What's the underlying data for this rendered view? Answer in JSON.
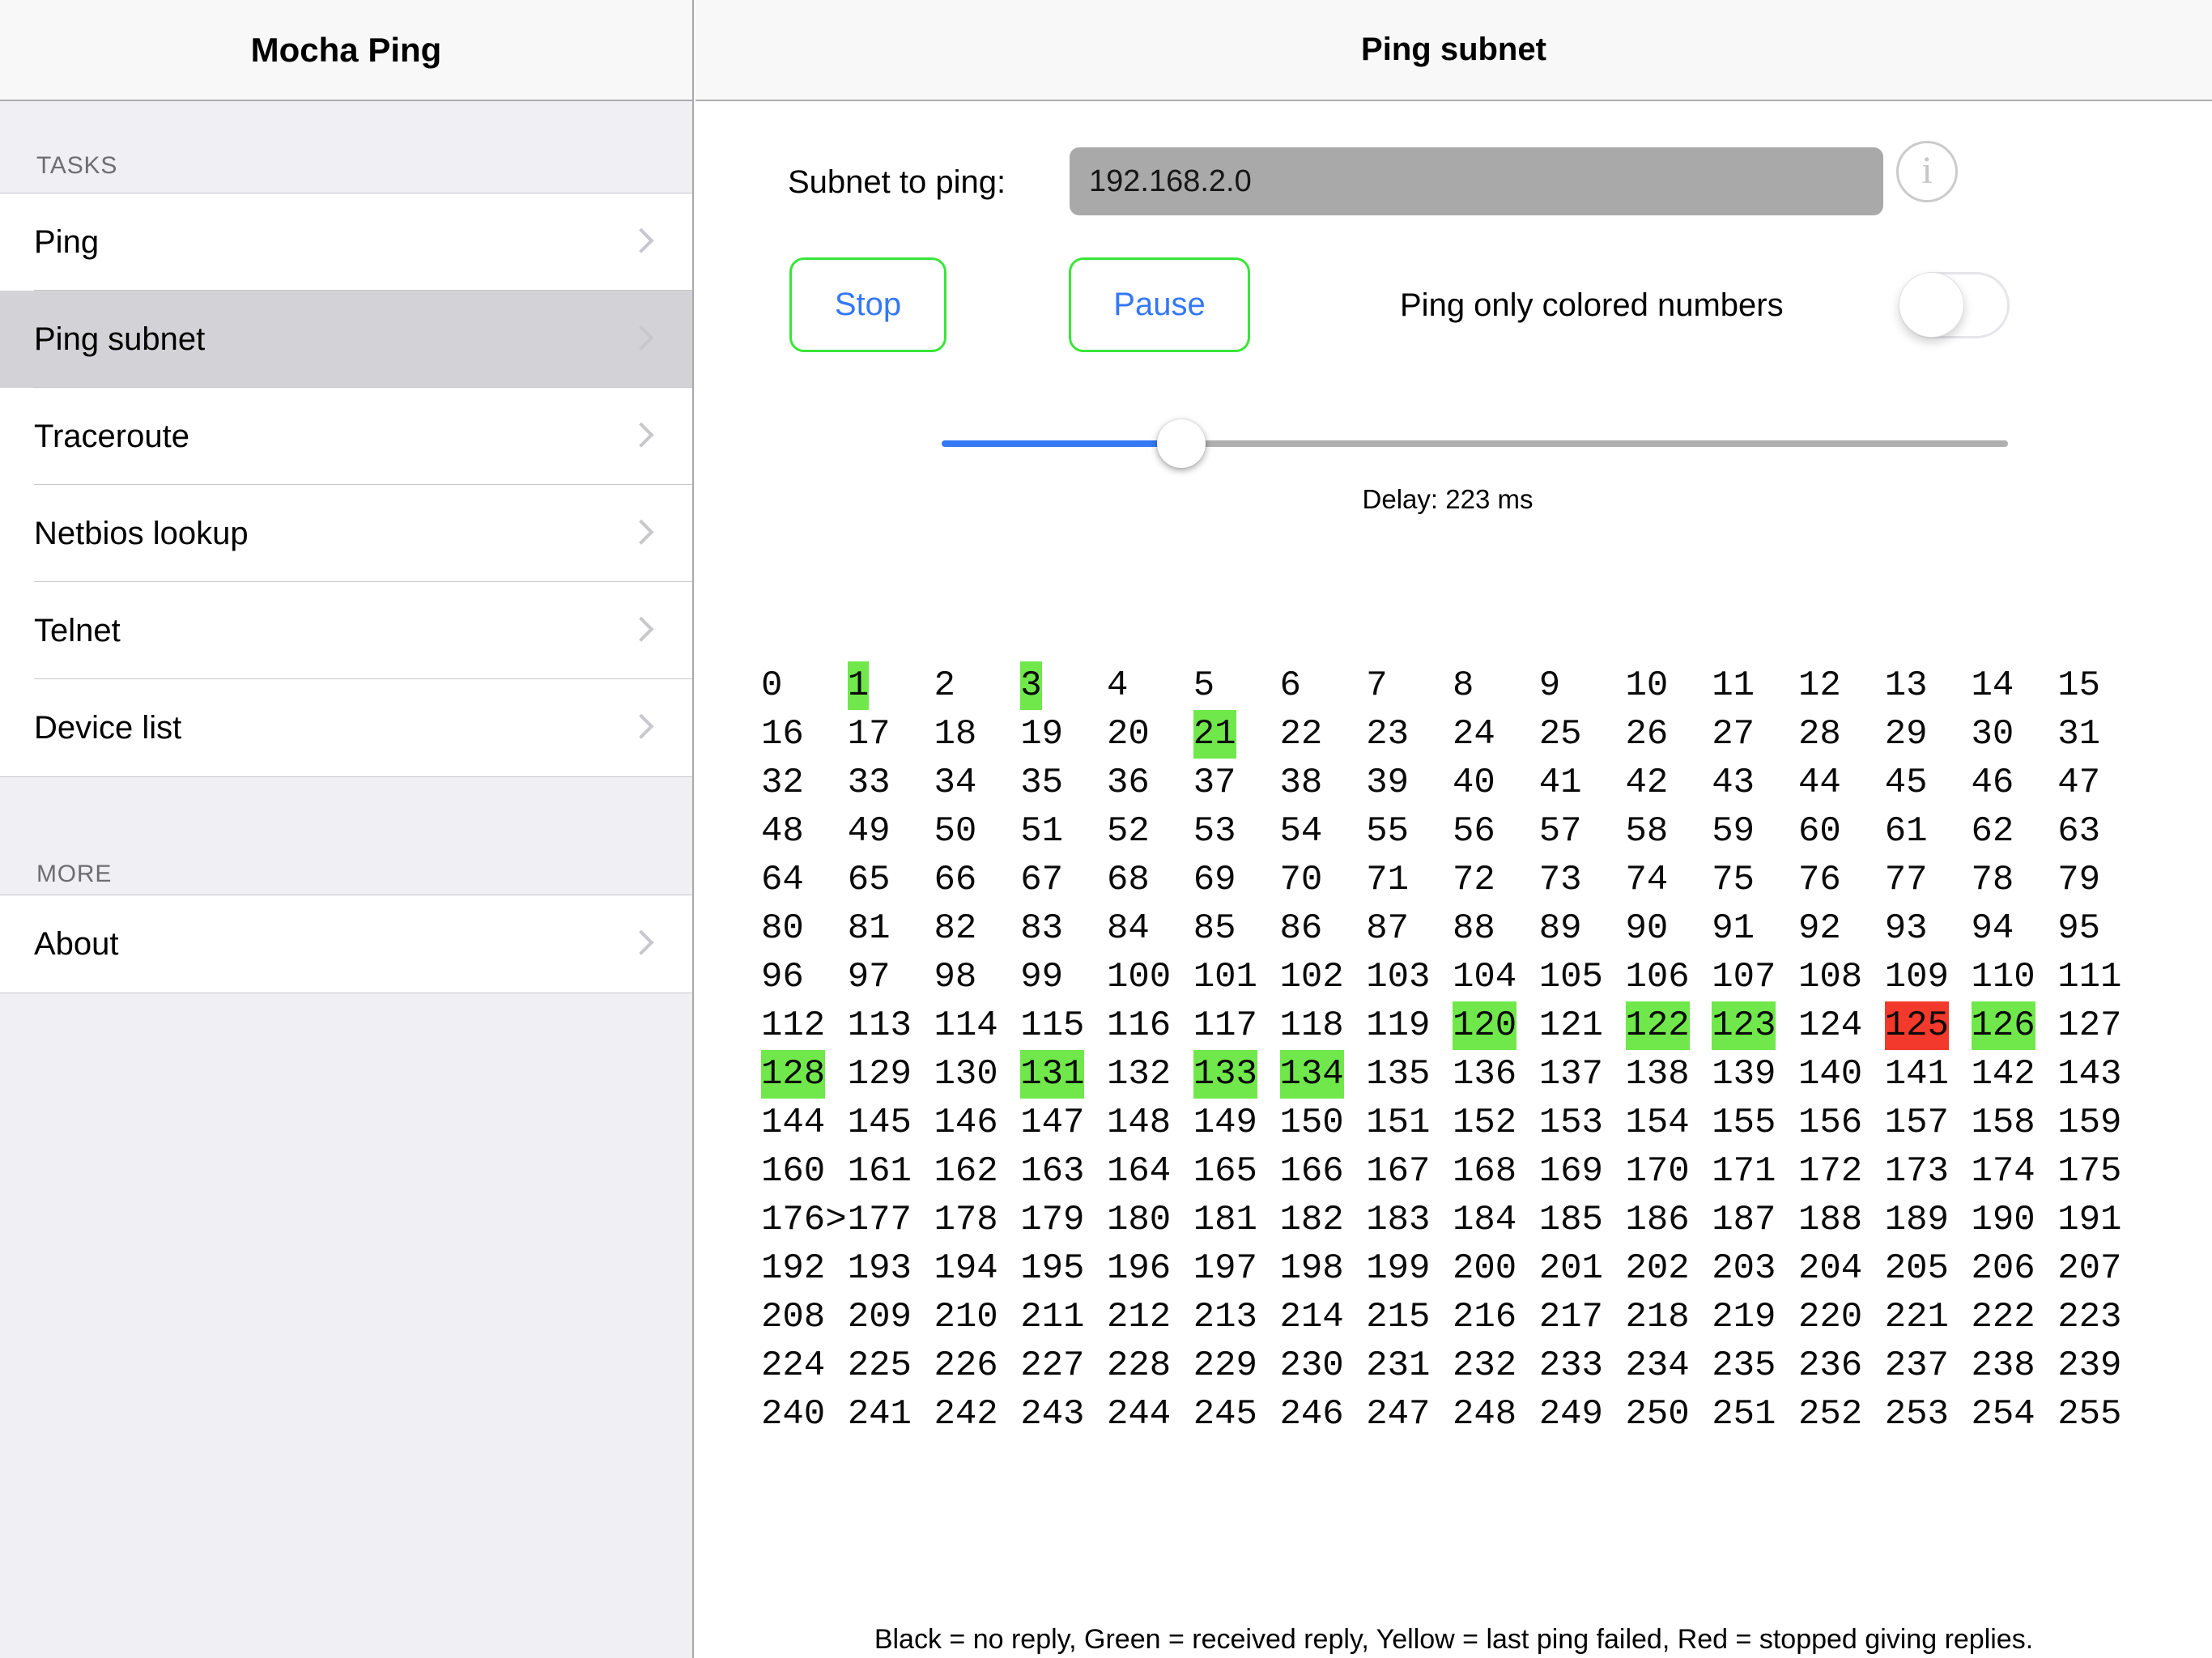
{
  "sidebar": {
    "title": "Mocha Ping",
    "sections": [
      {
        "header": "TASKS",
        "items": [
          {
            "label": "Ping",
            "selected": false
          },
          {
            "label": "Ping subnet",
            "selected": true
          },
          {
            "label": "Traceroute",
            "selected": false
          },
          {
            "label": "Netbios lookup",
            "selected": false
          },
          {
            "label": "Telnet",
            "selected": false
          },
          {
            "label": "Device list",
            "selected": false
          }
        ]
      },
      {
        "header": "MORE",
        "items": [
          {
            "label": "About",
            "selected": false
          }
        ]
      }
    ]
  },
  "header": {
    "title": "Ping subnet",
    "help_label": "Help"
  },
  "controls": {
    "subnet_label": "Subnet to ping:",
    "subnet_value": "192.168.2.0",
    "info_glyph": "i",
    "stop_label": "Stop",
    "pause_label": "Pause",
    "toggle_label": "Ping only colored numbers",
    "toggle_on": false,
    "slider_percent": 22.5,
    "delay_label": "Delay: 223 ms"
  },
  "grid": {
    "from": 0,
    "to": 255,
    "columns": 16,
    "green_cells": [
      1,
      3,
      21,
      120,
      122,
      123,
      126,
      128,
      131,
      133,
      134
    ],
    "red_cells": [
      125
    ],
    "yellow_cells": [],
    "cursor_after": 176,
    "cursor_char": ">"
  },
  "legend": {
    "text": "Black = no reply, Green = received reply, Yellow = last ping failed, Red = stopped giving replies."
  },
  "colors": {
    "accent_blue": "#3478F6",
    "help_blue": "#3076F2",
    "button_border_green": "#39E639",
    "highlight_green": "#70E84B",
    "highlight_red": "#F2392B",
    "input_gray": "#A9A9A9",
    "selected_row_gray": "#D2D2D7",
    "sidebar_bg": "#EFEFF4",
    "header_bg": "#F8F8F8"
  }
}
